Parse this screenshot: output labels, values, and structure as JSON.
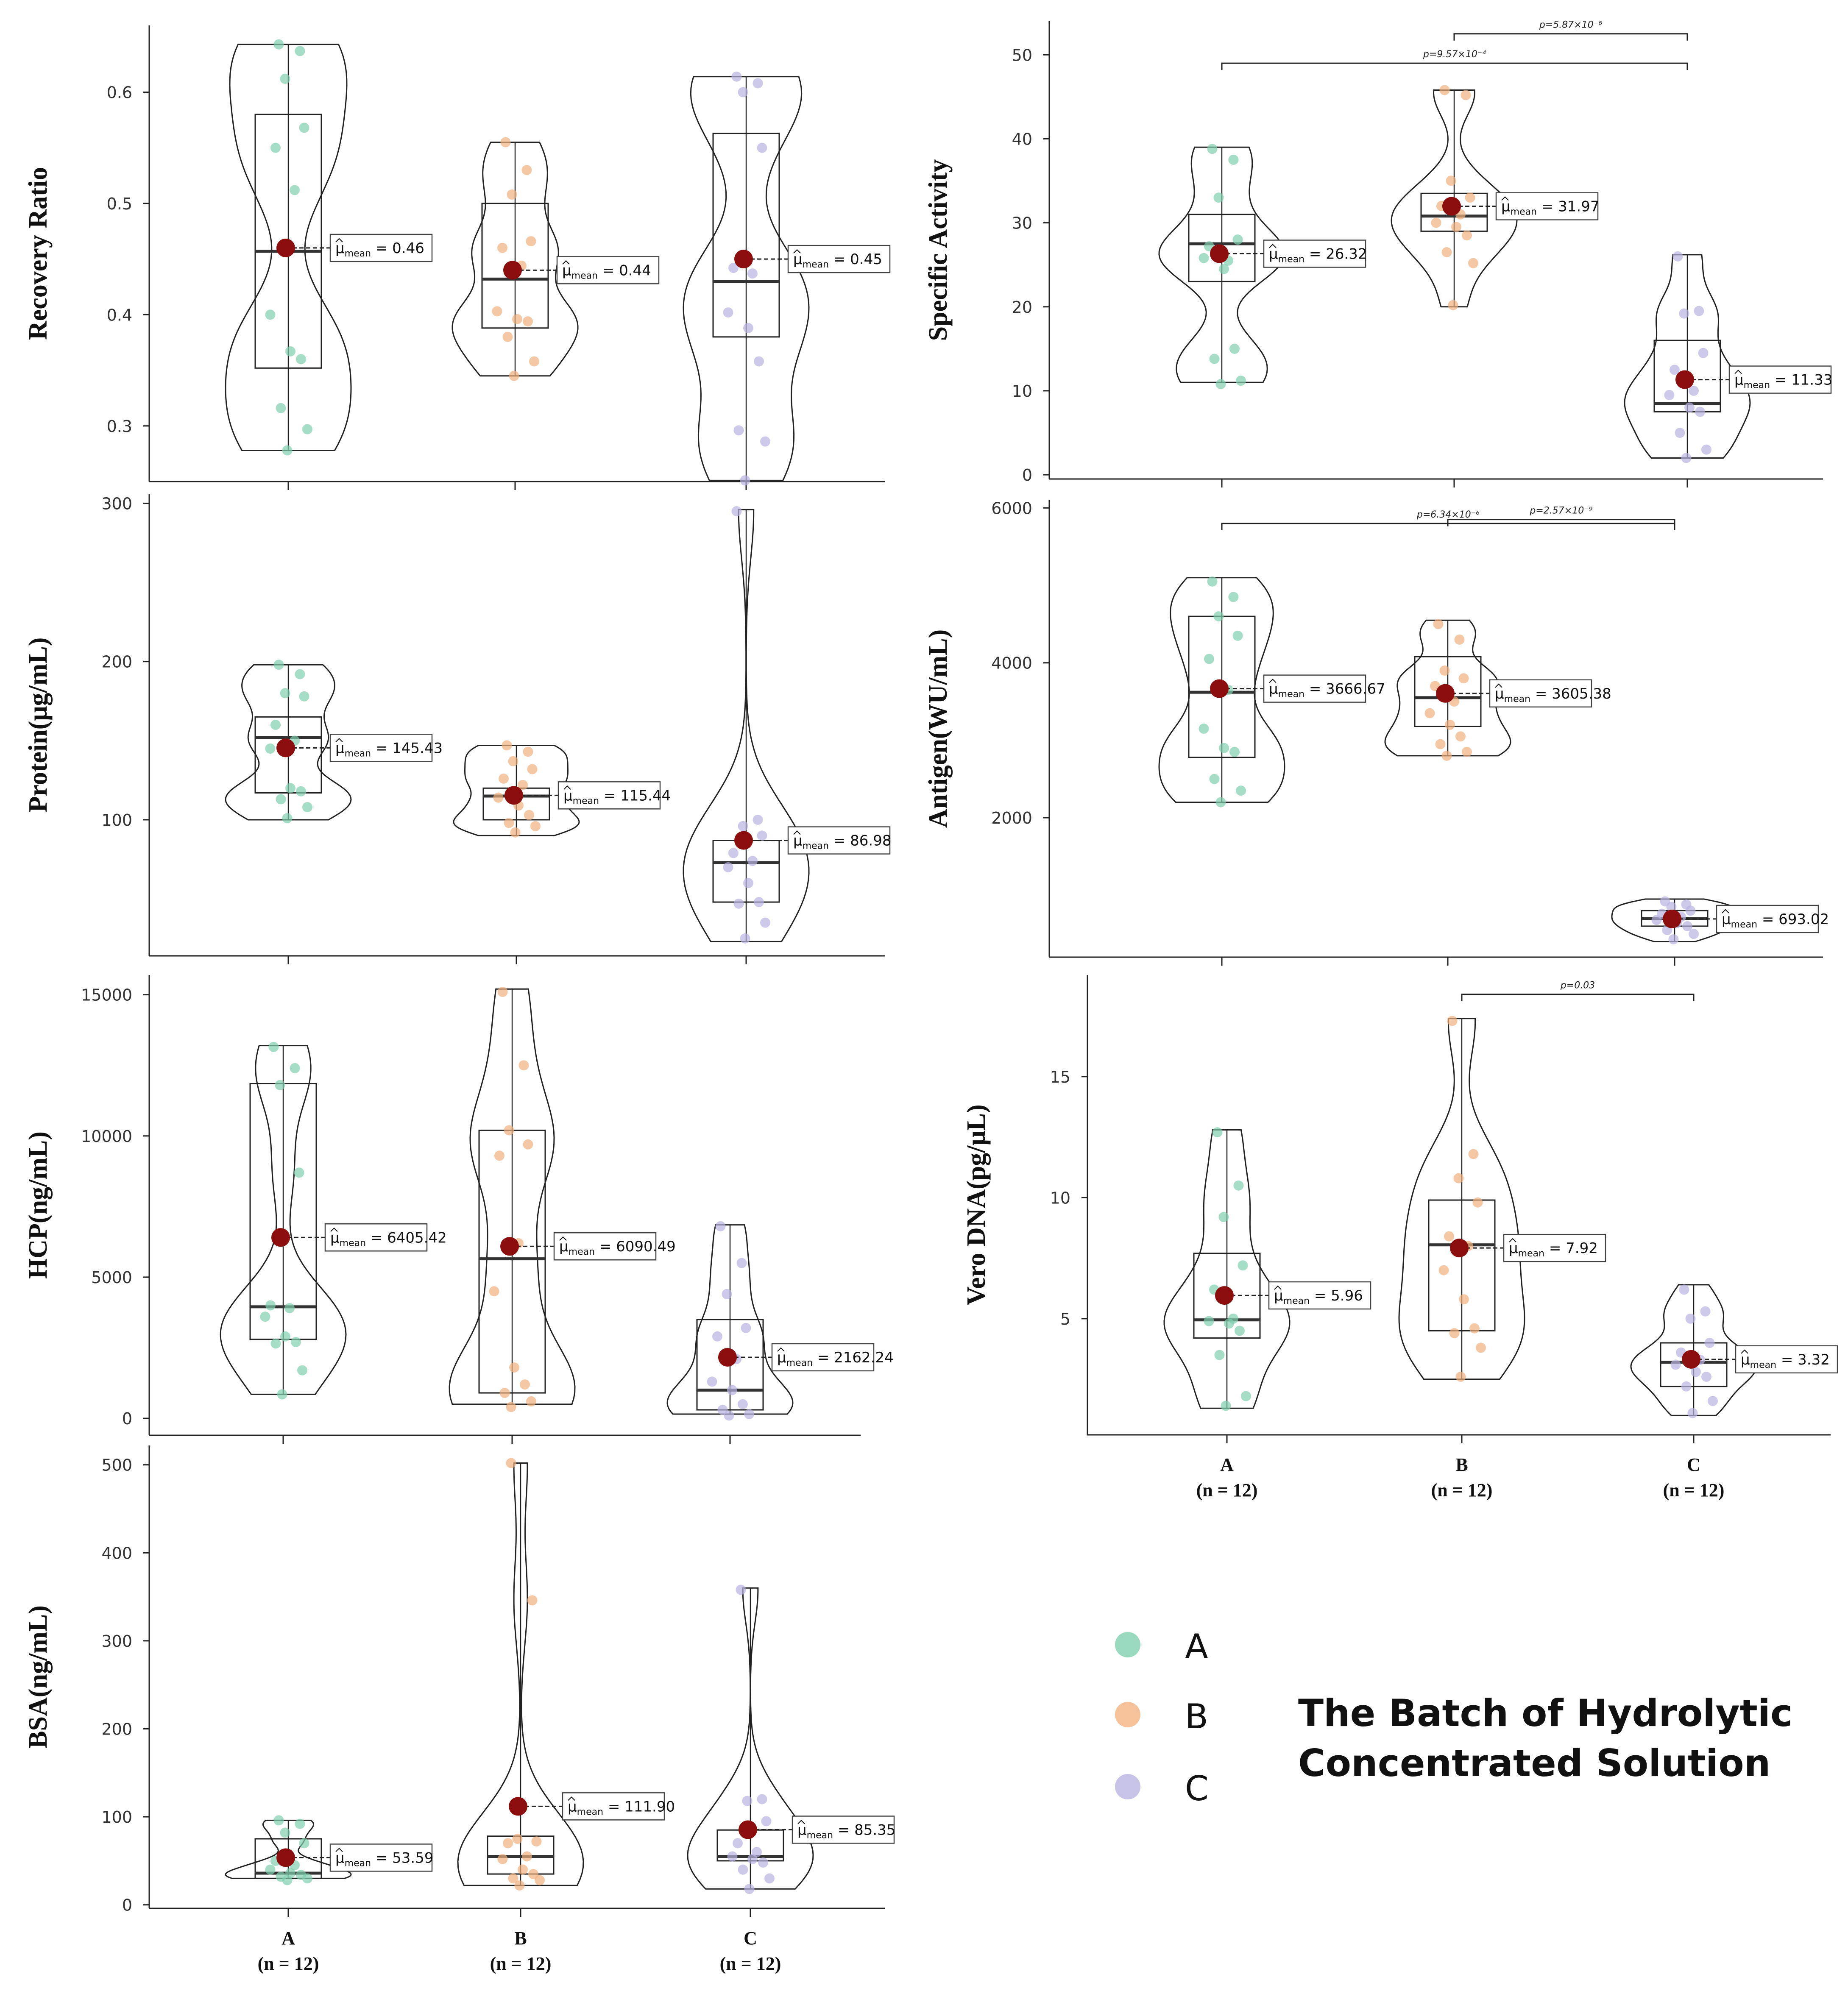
{
  "groups": [
    "A",
    "B",
    "C"
  ],
  "group_n": [
    "(n = 12)",
    "(n = 12)",
    "(n = 12)"
  ],
  "colors": {
    "A": "#7fcfae",
    "B": "#f1b17f",
    "C": "#b8b4e0",
    "mean": "#8b0d0d",
    "line": "#222222"
  },
  "mean_label_prefix": "μ",
  "mean_label_sub": "mean",
  "legend": {
    "items": [
      "A",
      "B",
      "C"
    ],
    "title_lines": [
      "The Batch of Hydrolytic",
      "Concentrated Solution"
    ]
  },
  "chart_data": [
    {
      "id": "recovery",
      "type": "violin-box",
      "ylabel": "Recovery Ratio",
      "ylim": [
        0.25,
        0.66
      ],
      "yticks": [
        0.3,
        0.4,
        0.5,
        0.6
      ],
      "tick_labels": [
        "0.3",
        "0.4",
        "0.5",
        "0.6"
      ],
      "show_x_labels": false,
      "groups": [
        {
          "name": "A",
          "mean": 0.46,
          "mean_label": "0.46",
          "median": 0.457,
          "q1": 0.352,
          "q3": 0.58,
          "min": 0.278,
          "max": 0.643,
          "points": [
            0.643,
            0.637,
            0.612,
            0.568,
            0.55,
            0.512,
            0.4,
            0.367,
            0.36,
            0.316,
            0.297,
            0.278
          ]
        },
        {
          "name": "B",
          "mean": 0.44,
          "mean_label": "0.44",
          "median": 0.432,
          "q1": 0.388,
          "q3": 0.5,
          "min": 0.345,
          "max": 0.555,
          "points": [
            0.555,
            0.53,
            0.508,
            0.466,
            0.46,
            0.444,
            0.403,
            0.396,
            0.394,
            0.38,
            0.358,
            0.345
          ]
        },
        {
          "name": "C",
          "mean": 0.45,
          "mean_label": "0.45",
          "median": 0.43,
          "q1": 0.38,
          "q3": 0.563,
          "min": 0.251,
          "max": 0.614,
          "points": [
            0.614,
            0.608,
            0.6,
            0.55,
            0.442,
            0.437,
            0.402,
            0.388,
            0.358,
            0.296,
            0.286,
            0.251
          ]
        }
      ],
      "brackets": []
    },
    {
      "id": "specific",
      "type": "violin-box",
      "ylabel": "Specific Activity",
      "ylim": [
        -0.5,
        54
      ],
      "yticks": [
        0,
        10,
        20,
        30,
        40,
        50
      ],
      "tick_labels": [
        "0",
        "10",
        "20",
        "30",
        "40",
        "50"
      ],
      "show_x_labels": false,
      "groups": [
        {
          "name": "A",
          "mean": 26.32,
          "mean_label": "26.32",
          "median": 27.5,
          "q1": 23.0,
          "q3": 31.0,
          "min": 11.0,
          "max": 39.0,
          "points": [
            38.8,
            37.5,
            33.0,
            28.0,
            27.2,
            25.5,
            25.8,
            24.5,
            15.0,
            13.8,
            11.2,
            10.8
          ]
        },
        {
          "name": "B",
          "mean": 31.97,
          "mean_label": "31.97",
          "median": 30.8,
          "q1": 29.0,
          "q3": 33.5,
          "min": 20.0,
          "max": 45.8,
          "points": [
            45.8,
            45.2,
            35.0,
            33.0,
            32.0,
            31.0,
            30.0,
            29.5,
            28.5,
            26.5,
            25.2,
            20.2
          ]
        },
        {
          "name": "C",
          "mean": 11.33,
          "mean_label": "11.33",
          "median": 8.5,
          "q1": 7.5,
          "q3": 16.0,
          "min": 2.0,
          "max": 26.2,
          "points": [
            26.0,
            19.5,
            19.2,
            14.5,
            12.5,
            10.0,
            9.5,
            8.0,
            7.5,
            5.0,
            3.0,
            2.0
          ]
        }
      ],
      "brackets": [
        {
          "from": 0,
          "to": 2,
          "y": 49.0,
          "label": "p=9.57×10⁻⁴"
        },
        {
          "from": 1,
          "to": 2,
          "y": 52.5,
          "label": "p=5.87×10⁻⁶"
        }
      ]
    },
    {
      "id": "protein",
      "type": "violin-box",
      "ylabel": "Protein(μg/mL)",
      "ylim": [
        14,
        306
      ],
      "yticks": [
        100,
        200,
        300
      ],
      "tick_labels": [
        "100",
        "200",
        "300"
      ],
      "show_x_labels": false,
      "groups": [
        {
          "name": "A",
          "mean": 145.43,
          "mean_label": "145.43",
          "median": 152,
          "q1": 117,
          "q3": 165,
          "min": 100,
          "max": 198,
          "points": [
            198,
            192,
            180,
            178,
            160,
            150,
            145,
            120,
            118,
            113,
            108,
            101
          ]
        },
        {
          "name": "B",
          "mean": 115.44,
          "mean_label": "115.44",
          "median": 115,
          "q1": 100,
          "q3": 120,
          "min": 90,
          "max": 147,
          "points": [
            147,
            143,
            137,
            132,
            126,
            122,
            114,
            109,
            103,
            98,
            96,
            92
          ]
        },
        {
          "name": "C",
          "mean": 86.98,
          "mean_label": "86.98",
          "median": 73,
          "q1": 48,
          "q3": 87,
          "min": 23,
          "max": 296,
          "points": [
            295,
            100,
            96,
            90,
            79,
            74,
            70,
            60,
            48,
            47,
            35,
            25
          ]
        }
      ],
      "brackets": []
    },
    {
      "id": "antigen",
      "type": "violin-box",
      "ylabel": "Antigen(WU/mL)",
      "ylim": [
        200,
        6100
      ],
      "yticks": [
        2000,
        4000,
        6000
      ],
      "tick_labels": [
        "2000",
        "4000",
        "6000"
      ],
      "show_x_labels": false,
      "groups": [
        {
          "name": "A",
          "mean": 3666.67,
          "mean_label": "3666.67",
          "median": 3620,
          "q1": 2780,
          "q3": 4600,
          "min": 2200,
          "max": 5100,
          "points": [
            5050,
            4850,
            4600,
            4350,
            4050,
            3650,
            3150,
            2900,
            2850,
            2500,
            2350,
            2200
          ]
        },
        {
          "name": "B",
          "mean": 3605.38,
          "mean_label": "3605.38",
          "median": 3550,
          "q1": 3180,
          "q3": 4080,
          "min": 2800,
          "max": 4550,
          "points": [
            4500,
            4300,
            3900,
            3800,
            3700,
            3500,
            3350,
            3200,
            3050,
            2950,
            2850,
            2800
          ]
        },
        {
          "name": "C",
          "mean": 693.02,
          "mean_label": "693.02",
          "median": 700,
          "q1": 600,
          "q3": 800,
          "min": 400,
          "max": 950,
          "points": [
            920,
            880,
            850,
            800,
            760,
            720,
            680,
            640,
            600,
            550,
            500,
            430
          ]
        }
      ],
      "brackets": [
        {
          "from": 0,
          "to": 2,
          "y": 5800,
          "label": "p=6.34×10⁻⁶"
        },
        {
          "from": 1,
          "to": 2,
          "y": 5850,
          "label": "p=2.57×10⁻⁹",
          "above": true
        }
      ]
    },
    {
      "id": "hcp",
      "type": "violin-box",
      "ylabel": "HCP(ng/mL)",
      "ylim": [
        -600,
        15700
      ],
      "yticks": [
        0,
        5000,
        10000,
        15000
      ],
      "tick_labels": [
        "0",
        "5000",
        "10000",
        "15000"
      ],
      "show_x_labels": false,
      "groups": [
        {
          "name": "A",
          "mean": 6405.42,
          "mean_label": "6405.42",
          "median": 3950,
          "q1": 2800,
          "q3": 11850,
          "min": 850,
          "max": 13200,
          "points": [
            13150,
            12400,
            11800,
            8700,
            4000,
            3900,
            3600,
            2900,
            2700,
            2650,
            1700,
            850
          ]
        },
        {
          "name": "B",
          "mean": 6090.49,
          "mean_label": "6090.49",
          "median": 5650,
          "q1": 900,
          "q3": 10200,
          "min": 500,
          "max": 15200,
          "points": [
            15100,
            12500,
            10200,
            9700,
            9300,
            6200,
            4500,
            1800,
            1200,
            900,
            600,
            400
          ]
        },
        {
          "name": "C",
          "mean": 2162.24,
          "mean_label": "2162.24",
          "median": 1000,
          "q1": 300,
          "q3": 3500,
          "min": 150,
          "max": 6850,
          "points": [
            6800,
            5500,
            4400,
            3200,
            2900,
            2100,
            1300,
            1000,
            500,
            300,
            150,
            100
          ]
        }
      ],
      "brackets": []
    },
    {
      "id": "vero",
      "type": "violin-box",
      "ylabel": "Vero DNA(pg/μL)",
      "ylim": [
        0.2,
        19.2
      ],
      "yticks": [
        5,
        10,
        15
      ],
      "tick_labels": [
        "5",
        "10",
        "15"
      ],
      "show_x_labels": true,
      "groups": [
        {
          "name": "A",
          "mean": 5.96,
          "mean_label": "5.96",
          "median": 4.95,
          "q1": 4.2,
          "q3": 7.7,
          "min": 1.3,
          "max": 12.8,
          "points": [
            12.7,
            10.5,
            9.2,
            7.2,
            6.2,
            5.0,
            4.9,
            4.8,
            4.5,
            3.5,
            1.8,
            1.4
          ]
        },
        {
          "name": "B",
          "mean": 7.92,
          "mean_label": "7.92",
          "median": 8.05,
          "q1": 4.5,
          "q3": 9.9,
          "min": 2.5,
          "max": 17.4,
          "points": [
            17.3,
            11.8,
            10.8,
            9.8,
            8.4,
            8.0,
            7.0,
            5.8,
            4.6,
            4.4,
            3.8,
            2.6
          ]
        },
        {
          "name": "C",
          "mean": 3.32,
          "mean_label": "3.32",
          "median": 3.2,
          "q1": 2.2,
          "q3": 4.0,
          "min": 1.0,
          "max": 6.4,
          "points": [
            6.2,
            5.3,
            5.0,
            4.0,
            3.6,
            3.3,
            3.1,
            2.8,
            2.6,
            2.2,
            1.6,
            1.1
          ]
        }
      ],
      "brackets": [
        {
          "from": 1,
          "to": 2,
          "y": 18.4,
          "label": "p=0.03"
        }
      ]
    },
    {
      "id": "bsa",
      "type": "violin-box",
      "ylabel": "BSA(ng/mL)",
      "ylim": [
        -4,
        522
      ],
      "yticks": [
        0,
        100,
        200,
        300,
        400,
        500
      ],
      "tick_labels": [
        "0",
        "100",
        "200",
        "300",
        "400",
        "500"
      ],
      "show_x_labels": true,
      "groups": [
        {
          "name": "A",
          "mean": 53.59,
          "mean_label": "53.59",
          "median": 36,
          "q1": 30,
          "q3": 75,
          "min": 30,
          "max": 96,
          "points": [
            96,
            92,
            82,
            70,
            50,
            45,
            40,
            36,
            34,
            32,
            30,
            28
          ]
        },
        {
          "name": "B",
          "mean": 111.9,
          "mean_label": "111.90",
          "median": 55,
          "q1": 35,
          "q3": 78,
          "min": 22,
          "max": 502,
          "points": [
            502,
            346,
            75,
            72,
            70,
            55,
            52,
            40,
            35,
            30,
            28,
            22
          ]
        },
        {
          "name": "C",
          "mean": 85.35,
          "mean_label": "85.35",
          "median": 55,
          "q1": 50,
          "q3": 85,
          "min": 18,
          "max": 360,
          "points": [
            358,
            120,
            118,
            95,
            70,
            60,
            55,
            52,
            48,
            40,
            30,
            18
          ]
        }
      ],
      "brackets": []
    }
  ]
}
